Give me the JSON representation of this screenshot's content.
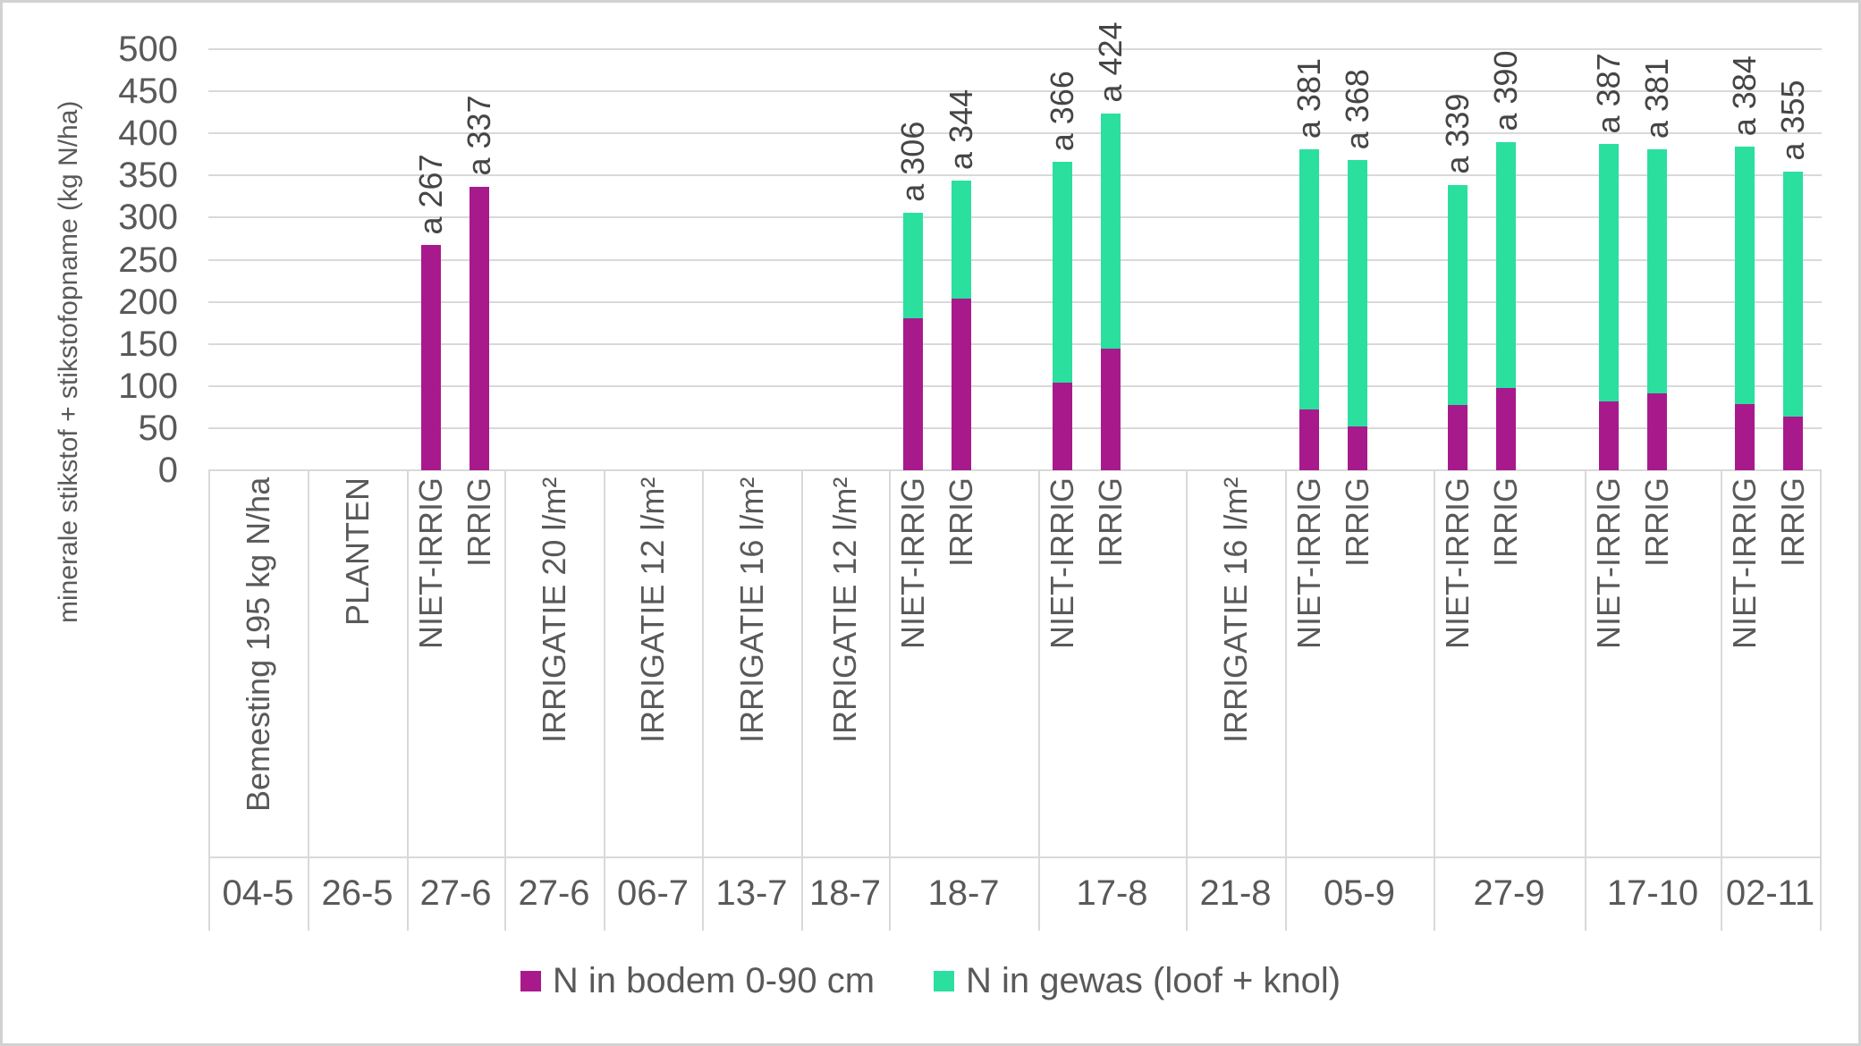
{
  "colors": {
    "bodem": "#a81a8c",
    "gewas": "#2bdf9f",
    "grid": "#d9d9d9",
    "axis_text": "#595959",
    "data_label_text": "#454545",
    "chart_border": "#d2d2d2"
  },
  "y_axis": {
    "title": "minerale stikstof + stikstofopname (kg N/ha)",
    "ticks": [
      0,
      50,
      100,
      150,
      200,
      250,
      300,
      350,
      400,
      450,
      500
    ]
  },
  "legend": {
    "items": [
      {
        "label": "N in bodem 0-90 cm",
        "color": "#a81a8c"
      },
      {
        "label": "N in gewas (loof + knol)",
        "color": "#2bdf9f"
      }
    ]
  },
  "chart_data": {
    "type": "bar",
    "stacked": true,
    "ylabel": "minerale stikstof + stikstofopname (kg N/ha)",
    "ylim": [
      0,
      500
    ],
    "ytick_step": 50,
    "grid": true,
    "legend_position": "bottom",
    "series_names": [
      "N in bodem 0-90 cm",
      "N in gewas (loof + knol)"
    ],
    "yticks": [
      0,
      50,
      100,
      150,
      200,
      250,
      300,
      350,
      400,
      450,
      500
    ],
    "groups": [
      {
        "labels": [
          "Bemesting 195 kg N/ha"
        ],
        "date": "04-5",
        "bars": []
      },
      {
        "labels": [
          "PLANTEN"
        ],
        "date": "26-5",
        "bars": []
      },
      {
        "labels": [
          "NIET-IRRIG",
          "IRRIG"
        ],
        "date": "27-6",
        "bars": [
          {
            "label": "a 267",
            "bodem": 267,
            "gewas": 0,
            "total": 267
          },
          {
            "label": "a 337",
            "bodem": 337,
            "gewas": 0,
            "total": 337
          }
        ]
      },
      {
        "labels": [
          "IRRIGATIE 20 l/m²"
        ],
        "date": "27-6",
        "bars": []
      },
      {
        "labels": [
          "IRRIGATIE 12 l/m²"
        ],
        "date": "06-7",
        "bars": []
      },
      {
        "labels": [
          "IRRIGATIE 16 l/m²"
        ],
        "date": "13-7",
        "bars": []
      },
      {
        "labels": [
          "IRRIGATIE 12 l/m²"
        ],
        "date": "18-7",
        "bars": []
      },
      {
        "labels": [
          "NIET-IRRIG",
          "IRRIG"
        ],
        "date": "18-7",
        "bars": [
          {
            "label": "a 306",
            "bodem": 180,
            "gewas": 126,
            "total": 306
          },
          {
            "label": "a 344",
            "bodem": 204,
            "gewas": 140,
            "total": 344
          }
        ]
      },
      {
        "labels": [
          "NIET-IRRIG",
          "IRRIG"
        ],
        "date": "17-8",
        "bars": [
          {
            "label": "a 366",
            "bodem": 104,
            "gewas": 262,
            "total": 366
          },
          {
            "label": "a 424",
            "bodem": 144,
            "gewas": 280,
            "total": 424
          }
        ]
      },
      {
        "labels": [
          "IRRIGATIE 16 l/m²"
        ],
        "date": "21-8",
        "bars": []
      },
      {
        "labels": [
          "NIET-IRRIG",
          "IRRIG"
        ],
        "date": "05-9",
        "bars": [
          {
            "label": "a 381",
            "bodem": 72,
            "gewas": 309,
            "total": 381
          },
          {
            "label": "a 368",
            "bodem": 52,
            "gewas": 316,
            "total": 368
          }
        ]
      },
      {
        "labels": [
          "NIET-IRRIG",
          "IRRIG"
        ],
        "date": "27-9",
        "bars": [
          {
            "label": "a 339",
            "bodem": 78,
            "gewas": 261,
            "total": 339
          },
          {
            "label": "a 390",
            "bodem": 98,
            "gewas": 292,
            "total": 390
          }
        ]
      },
      {
        "labels": [
          "NIET-IRRIG",
          "IRRIG"
        ],
        "date": "17-10",
        "bars": [
          {
            "label": "a 387",
            "bodem": 82,
            "gewas": 305,
            "total": 387
          },
          {
            "label": "a 381",
            "bodem": 91,
            "gewas": 290,
            "total": 381
          }
        ]
      },
      {
        "labels": [
          "NIET-IRRIG",
          "IRRIG"
        ],
        "date": "02-11",
        "bars": [
          {
            "label": "a 384",
            "bodem": 79,
            "gewas": 305,
            "total": 384
          },
          {
            "label": "a 355",
            "bodem": 64,
            "gewas": 291,
            "total": 355
          }
        ]
      }
    ]
  }
}
